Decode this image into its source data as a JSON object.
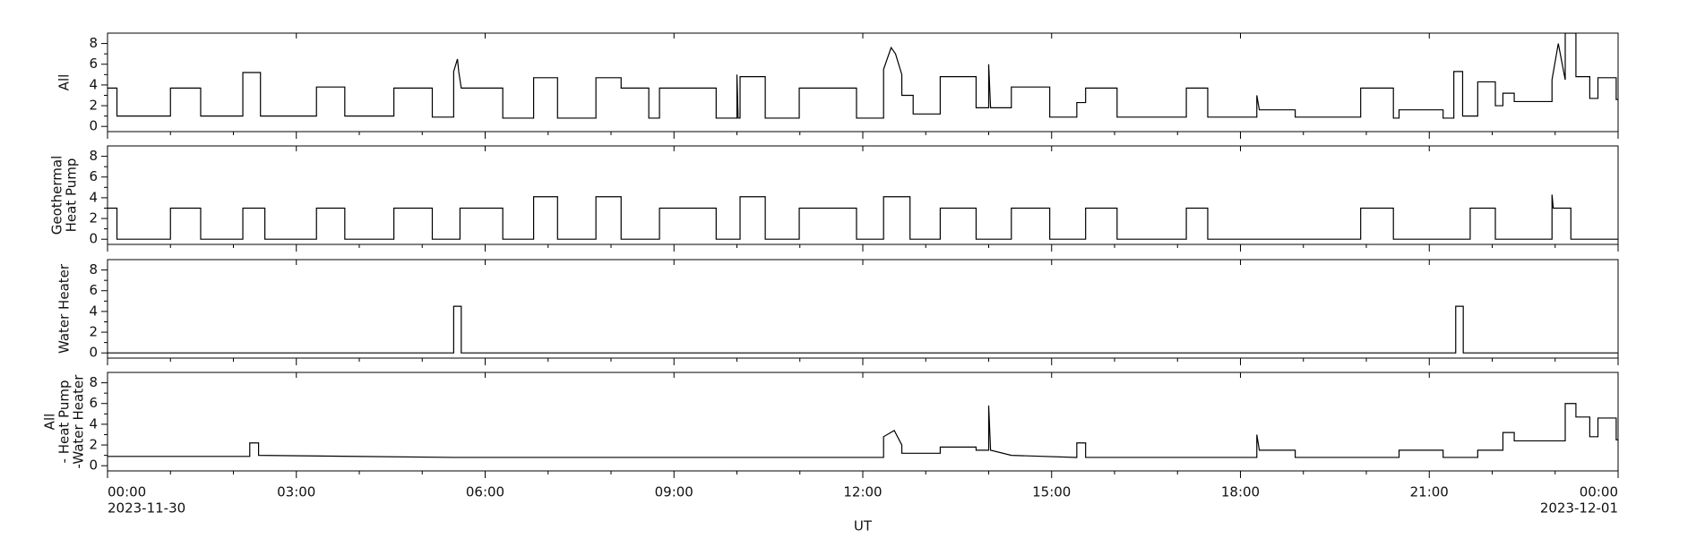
{
  "chart_data": [
    {
      "type": "line",
      "ylabel": [
        "All"
      ],
      "color": "#000000",
      "x": [
        0,
        0.15,
        0.15,
        1.0,
        1.0,
        1.48,
        1.48,
        2.15,
        2.15,
        2.43,
        2.43,
        3.32,
        3.32,
        3.77,
        3.77,
        4.55,
        4.55,
        5.16,
        5.16,
        5.5,
        5.5,
        5.56,
        5.58,
        5.62,
        6.28,
        6.28,
        6.77,
        6.77,
        7.15,
        7.15,
        7.76,
        7.76,
        8.16,
        8.16,
        8.6,
        8.6,
        8.77,
        8.77,
        9.67,
        9.67,
        10.0,
        10.0,
        10.02,
        10.05,
        10.05,
        10.45,
        10.45,
        10.99,
        10.99,
        11.9,
        11.9,
        12.33,
        12.33,
        12.45,
        12.52,
        12.62,
        12.62,
        12.8,
        12.8,
        13.23,
        13.23,
        13.8,
        13.8,
        14.0,
        14.0,
        14.03,
        14.36,
        14.36,
        14.97,
        14.97,
        15.4,
        15.4,
        15.54,
        15.54,
        16.04,
        16.04,
        17.14,
        17.14,
        17.48,
        17.48,
        18.26,
        18.26,
        18.3,
        18.87,
        18.87,
        19.91,
        19.91,
        20.43,
        20.43,
        20.52,
        20.52,
        21.22,
        21.22,
        21.39,
        21.39,
        21.53,
        21.53,
        21.77,
        21.77,
        22.05,
        22.05,
        22.17,
        22.17,
        22.35,
        22.35,
        22.95,
        22.95,
        23.05,
        23.16,
        23.16,
        23.33,
        23.33,
        23.55,
        23.55,
        23.68,
        23.68,
        23.97,
        23.97,
        24
      ],
      "values": [
        3.7,
        3.7,
        1.0,
        1.0,
        3.7,
        3.7,
        1.0,
        1.0,
        5.2,
        5.2,
        1.0,
        1.0,
        3.8,
        3.8,
        1.0,
        1.0,
        3.7,
        3.7,
        0.9,
        0.9,
        5.3,
        6.5,
        5.3,
        3.7,
        3.7,
        0.8,
        0.8,
        4.7,
        4.7,
        0.8,
        0.8,
        4.7,
        4.7,
        3.7,
        3.7,
        0.8,
        0.8,
        3.7,
        3.7,
        0.8,
        0.8,
        5.0,
        0.8,
        0.8,
        4.8,
        4.8,
        0.8,
        0.8,
        3.7,
        3.7,
        0.8,
        0.8,
        5.5,
        7.6,
        7.0,
        5.0,
        3.0,
        3.0,
        1.2,
        1.2,
        4.8,
        4.8,
        1.8,
        1.8,
        6.0,
        1.8,
        1.8,
        3.8,
        3.8,
        0.9,
        0.9,
        2.3,
        2.3,
        3.7,
        3.7,
        0.9,
        0.9,
        3.7,
        3.7,
        0.9,
        0.9,
        3.0,
        1.6,
        1.6,
        0.9,
        0.9,
        3.7,
        3.7,
        0.8,
        0.8,
        1.6,
        1.6,
        0.8,
        0.8,
        5.3,
        5.3,
        1.0,
        1.0,
        4.3,
        4.3,
        2.0,
        2.0,
        3.2,
        3.2,
        2.4,
        2.4,
        4.5,
        8.0,
        4.5,
        9.0,
        9.0,
        4.8,
        4.8,
        2.7,
        2.7,
        4.7,
        4.7,
        2.6,
        2.6
      ],
      "xlim": [
        0,
        24
      ],
      "xticks": [
        0,
        3,
        6,
        9,
        12,
        15,
        18,
        21,
        24
      ],
      "xminorticks": [
        1,
        2,
        4,
        5,
        7,
        8,
        10,
        11,
        13,
        14,
        16,
        17,
        19,
        20,
        22,
        23
      ],
      "ylim": [
        -0.5,
        9
      ],
      "yticks": [
        0,
        2,
        4,
        6,
        8
      ],
      "yminorticks": [
        1,
        3,
        5,
        7
      ]
    },
    {
      "type": "line",
      "ylabel": [
        "Geothermal",
        "Heat Pump"
      ],
      "color": "#000000",
      "x": [
        0,
        0.15,
        0.15,
        1.0,
        1.0,
        1.48,
        1.48,
        2.15,
        2.15,
        2.5,
        2.5,
        3.32,
        3.32,
        3.77,
        3.77,
        4.55,
        4.55,
        5.16,
        5.16,
        5.6,
        5.6,
        6.28,
        6.28,
        6.77,
        6.77,
        7.15,
        7.15,
        7.76,
        7.76,
        8.16,
        8.16,
        8.77,
        8.77,
        9.67,
        9.67,
        10.05,
        10.05,
        10.45,
        10.45,
        10.99,
        10.99,
        11.9,
        11.9,
        12.33,
        12.33,
        12.75,
        12.75,
        13.23,
        13.23,
        13.8,
        13.8,
        14.36,
        14.36,
        14.97,
        14.97,
        15.54,
        15.54,
        16.04,
        16.04,
        17.14,
        17.14,
        17.48,
        17.48,
        19.91,
        19.91,
        20.43,
        20.43,
        21.65,
        21.65,
        22.05,
        22.05,
        22.95,
        22.95,
        22.97,
        23.25,
        23.25,
        24
      ],
      "values": [
        3,
        3,
        0,
        0,
        3,
        3,
        0,
        0,
        3,
        3,
        0,
        0,
        3,
        3,
        0,
        0,
        3,
        3,
        0,
        0,
        3,
        3,
        0,
        0,
        4.1,
        4.1,
        0,
        0,
        4.1,
        4.1,
        0,
        0,
        3,
        3,
        0,
        0,
        4.1,
        4.1,
        0,
        0,
        3,
        3,
        0,
        0,
        4.1,
        4.1,
        0,
        0,
        3,
        3,
        0,
        0,
        3,
        3,
        0,
        0,
        3,
        3,
        0,
        0,
        3,
        3,
        0,
        0,
        3,
        3,
        0,
        0,
        3,
        3,
        0,
        0,
        4.3,
        3,
        3,
        0,
        0
      ],
      "xlim": [
        0,
        24
      ],
      "xticks": [
        0,
        3,
        6,
        9,
        12,
        15,
        18,
        21,
        24
      ],
      "xminorticks": [
        1,
        2,
        4,
        5,
        7,
        8,
        10,
        11,
        13,
        14,
        16,
        17,
        19,
        20,
        22,
        23
      ],
      "ylim": [
        -0.5,
        9
      ],
      "yticks": [
        0,
        2,
        4,
        6,
        8
      ],
      "yminorticks": [
        1,
        3,
        5,
        7
      ]
    },
    {
      "type": "line",
      "ylabel": [
        "Water Heater"
      ],
      "color": "#000000",
      "x": [
        0,
        5.5,
        5.5,
        5.62,
        5.62,
        21.42,
        21.42,
        21.54,
        21.54,
        24
      ],
      "values": [
        0,
        0,
        4.5,
        4.5,
        0,
        0,
        4.5,
        4.5,
        0,
        0
      ],
      "xlim": [
        0,
        24
      ],
      "xticks": [
        0,
        3,
        6,
        9,
        12,
        15,
        18,
        21,
        24
      ],
      "xminorticks": [
        1,
        2,
        4,
        5,
        7,
        8,
        10,
        11,
        13,
        14,
        16,
        17,
        19,
        20,
        22,
        23
      ],
      "ylim": [
        -0.5,
        9
      ],
      "yticks": [
        0,
        2,
        4,
        6,
        8
      ],
      "yminorticks": [
        1,
        3,
        5,
        7
      ]
    },
    {
      "type": "line",
      "ylabel": [
        "All",
        "- Heat Pump",
        "-Water Heater"
      ],
      "color": "#000000",
      "x": [
        0,
        2.26,
        2.26,
        2.4,
        2.4,
        5.5,
        12.33,
        12.33,
        12.5,
        12.62,
        12.62,
        13.23,
        13.23,
        13.8,
        13.8,
        14.0,
        14.0,
        14.03,
        14.36,
        15.4,
        15.4,
        15.54,
        15.54,
        18.26,
        18.26,
        18.3,
        18.87,
        18.87,
        20.52,
        20.52,
        21.22,
        21.22,
        21.77,
        21.77,
        22.17,
        22.17,
        22.35,
        22.35,
        23.16,
        23.16,
        23.33,
        23.33,
        23.55,
        23.55,
        23.68,
        23.68,
        23.97,
        23.97,
        24
      ],
      "values": [
        0.9,
        0.9,
        2.2,
        2.2,
        1.0,
        0.8,
        0.8,
        2.8,
        3.4,
        2.0,
        1.2,
        1.2,
        1.8,
        1.8,
        1.5,
        1.5,
        5.8,
        1.5,
        1.0,
        0.8,
        2.2,
        2.2,
        0.8,
        0.8,
        3.0,
        1.5,
        1.5,
        0.8,
        0.8,
        1.5,
        1.5,
        0.8,
        0.8,
        1.5,
        1.5,
        3.2,
        3.2,
        2.4,
        2.4,
        6.0,
        6.0,
        4.7,
        4.7,
        2.8,
        2.8,
        4.6,
        4.6,
        2.5,
        2.5
      ],
      "xlim": [
        0,
        24
      ],
      "xticks": [
        {
          "value": 0,
          "label": "00:00"
        },
        {
          "value": 3,
          "label": "03:00"
        },
        {
          "value": 6,
          "label": "06:00"
        },
        {
          "value": 9,
          "label": "09:00"
        },
        {
          "value": 12,
          "label": "12:00"
        },
        {
          "value": 15,
          "label": "15:00"
        },
        {
          "value": 18,
          "label": "18:00"
        },
        {
          "value": 21,
          "label": "21:00"
        },
        {
          "value": 24,
          "label": "00:00"
        }
      ],
      "xminorticks": [
        1,
        2,
        4,
        5,
        7,
        8,
        10,
        11,
        13,
        14,
        16,
        17,
        19,
        20,
        22,
        23
      ],
      "start_date": "2023-11-30",
      "end_date": "2023-12-01",
      "xlabel": "UT",
      "ylim": [
        -0.5,
        9
      ],
      "yticks": [
        0,
        2,
        4,
        6,
        8
      ],
      "yminorticks": [
        1,
        3,
        5,
        7
      ]
    }
  ]
}
